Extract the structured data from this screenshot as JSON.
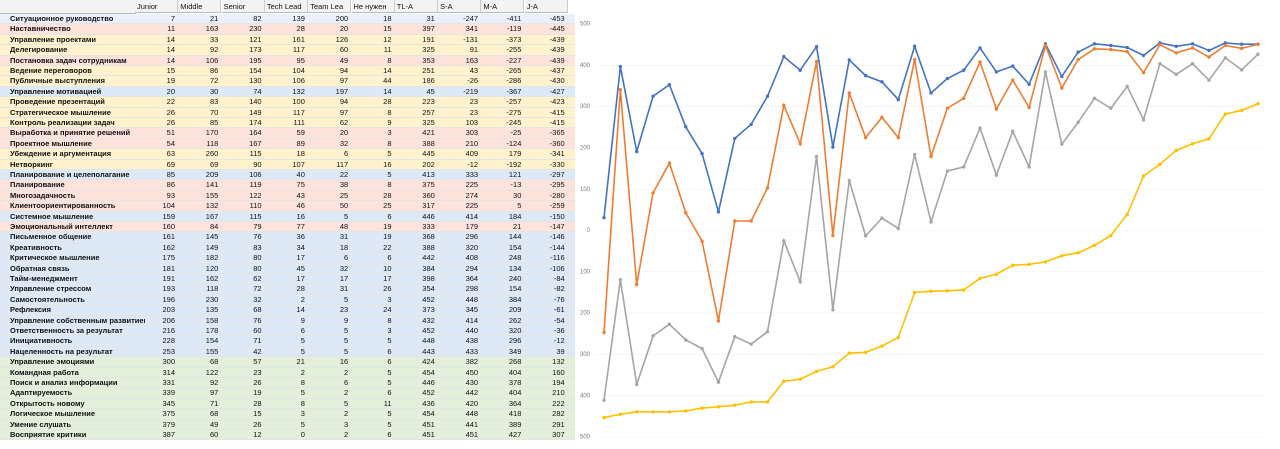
{
  "table": {
    "headers": [
      "Junior",
      "Middle",
      "Senior",
      "Tech Lead",
      "Team Lea",
      "Не нужен",
      "TL-A",
      "S-A",
      "M-A",
      "J-A"
    ],
    "rows": [
      [
        "Ситуационное руководство",
        7,
        21,
        82,
        139,
        200,
        18,
        31,
        -247,
        -411,
        -453
      ],
      [
        "Наставничество",
        11,
        163,
        230,
        28,
        20,
        15,
        397,
        341,
        -119,
        -445
      ],
      [
        "Управление проектами",
        14,
        33,
        121,
        161,
        126,
        12,
        191,
        -131,
        -373,
        -439
      ],
      [
        "Делегирование",
        14,
        92,
        173,
        117,
        60,
        11,
        325,
        91,
        -255,
        -439
      ],
      [
        "Постановка задач сотрудникам",
        14,
        106,
        195,
        95,
        49,
        8,
        353,
        163,
        -227,
        -439
      ],
      [
        "Ведение переговоров",
        15,
        86,
        154,
        104,
        94,
        14,
        251,
        43,
        -265,
        -437
      ],
      [
        "Публичные выступления",
        19,
        72,
        130,
        106,
        97,
        44,
        186,
        -26,
        -286,
        -430
      ],
      [
        "Управление мотивацией",
        20,
        30,
        74,
        132,
        197,
        14,
        45,
        -219,
        -367,
        -427
      ],
      [
        "Проведение презентаций",
        22,
        83,
        140,
        100,
        94,
        28,
        223,
        23,
        -257,
        -423
      ],
      [
        "Стратегическое мышление",
        26,
        70,
        149,
        117,
        97,
        8,
        257,
        23,
        -275,
        -415
      ],
      [
        "Контроль реализации задач",
        26,
        85,
        174,
        111,
        62,
        9,
        325,
        103,
        -245,
        -415
      ],
      [
        "Выработка и принятие решений",
        51,
        170,
        164,
        59,
        20,
        3,
        421,
        303,
        -25,
        -365
      ],
      [
        "Проектное мышление",
        54,
        118,
        167,
        89,
        32,
        8,
        388,
        210,
        -124,
        -360
      ],
      [
        "Убеждение и аргументация",
        63,
        260,
        115,
        18,
        6,
        5,
        445,
        409,
        179,
        -341
      ],
      [
        "Нетворкинг",
        69,
        69,
        90,
        107,
        117,
        16,
        202,
        -12,
        -192,
        -330
      ],
      [
        "Планирование и целеполагание",
        85,
        209,
        106,
        40,
        22,
        5,
        413,
        333,
        121,
        -297
      ],
      [
        "Планирование",
        86,
        141,
        119,
        75,
        38,
        8,
        375,
        225,
        -13,
        -295
      ],
      [
        "Многозадачность",
        93,
        155,
        122,
        43,
        25,
        28,
        360,
        274,
        30,
        -280
      ],
      [
        "Клиентоориентированность",
        104,
        132,
        110,
        46,
        50,
        25,
        317,
        225,
        5,
        -259
      ],
      [
        "Системное мышление",
        159,
        167,
        115,
        16,
        5,
        6,
        446,
        414,
        184,
        -150
      ],
      [
        "Эмоциональный интеллект",
        160,
        84,
        79,
        77,
        48,
        19,
        333,
        179,
        21,
        -147
      ],
      [
        "Письменное общение",
        161,
        145,
        76,
        36,
        31,
        19,
        368,
        296,
        144,
        -146
      ],
      [
        "Креативность",
        162,
        149,
        83,
        34,
        18,
        22,
        388,
        320,
        154,
        -144
      ],
      [
        "Критическое мышление",
        175,
        182,
        80,
        17,
        6,
        6,
        442,
        408,
        248,
        -116
      ],
      [
        "Обратная связь",
        181,
        120,
        80,
        45,
        32,
        10,
        384,
        294,
        134,
        -106
      ],
      [
        "Тайм-менеджмент",
        191,
        162,
        62,
        17,
        17,
        17,
        398,
        364,
        240,
        -84
      ],
      [
        "Управление стрессом",
        193,
        118,
        72,
        28,
        31,
        26,
        354,
        298,
        154,
        -82
      ],
      [
        "Самостоятельность",
        196,
        230,
        32,
        2,
        5,
        3,
        452,
        448,
        384,
        -76
      ],
      [
        "Рефлексия",
        203,
        135,
        68,
        14,
        23,
        24,
        373,
        345,
        209,
        -61
      ],
      [
        "Управление собственным развитием",
        206,
        158,
        76,
        9,
        9,
        8,
        432,
        414,
        262,
        -54
      ],
      [
        "Ответственность за результат",
        216,
        178,
        60,
        6,
        5,
        3,
        452,
        440,
        320,
        -36
      ],
      [
        "Инициативность",
        228,
        154,
        71,
        5,
        5,
        5,
        448,
        438,
        296,
        -12
      ],
      [
        "Нацеленность на результат",
        253,
        155,
        42,
        5,
        5,
        6,
        443,
        433,
        349,
        39
      ],
      [
        "Управление эмоциями",
        300,
        68,
        57,
        21,
        16,
        6,
        424,
        382,
        268,
        132
      ],
      [
        "Командная работа",
        314,
        122,
        23,
        2,
        2,
        5,
        454,
        450,
        404,
        160
      ],
      [
        "Поиск и анализ информации",
        331,
        92,
        26,
        8,
        6,
        5,
        446,
        430,
        378,
        194
      ],
      [
        "Адаптируемость",
        339,
        97,
        19,
        5,
        2,
        6,
        452,
        442,
        404,
        210
      ],
      [
        "Открытость новому",
        345,
        71,
        28,
        8,
        5,
        11,
        436,
        420,
        364,
        222
      ],
      [
        "Логическое мышление",
        375,
        68,
        15,
        3,
        2,
        5,
        454,
        448,
        418,
        282
      ],
      [
        "Умение слушать",
        379,
        49,
        26,
        5,
        3,
        5,
        451,
        441,
        389,
        291
      ],
      [
        "Восприятие критики",
        387,
        60,
        12,
        0,
        2,
        6,
        451,
        451,
        427,
        307
      ]
    ],
    "row_colors": [
      "#eaf1fb",
      "#fde3dc",
      "#fff2cc",
      "#fff2cc",
      "#fde3dc",
      "#fff2cc",
      "#fff2cc",
      "#dde9f7",
      "#fff2cc",
      "#fff2cc",
      "#fff2cc",
      "#fde3dc",
      "#fde3dc",
      "#fff2cc",
      "#fff2cc",
      "#dde9f7",
      "#fde3dc",
      "#fde3dc",
      "#fde3dc",
      "#dde9f7",
      "#fde3dc",
      "#dde9f7",
      "#dde9f7",
      "#dde9f7",
      "#dde9f7",
      "#dde9f7",
      "#dde9f7",
      "#dde9f7",
      "#dde9f7",
      "#dde9f7",
      "#dde9f7",
      "#dde9f7",
      "#dde9f7",
      "#e2efda",
      "#e2efda",
      "#e2efda",
      "#e2efda",
      "#e2efda",
      "#e2efda",
      "#e2efda",
      "#e2efda"
    ]
  },
  "chart_data": {
    "type": "line",
    "ylim": [
      -500,
      500
    ],
    "yticks": [
      -500,
      -400,
      -300,
      -200,
      -100,
      0,
      100,
      200,
      300,
      400,
      500
    ],
    "series": [
      {
        "color": "#4472c4",
        "values": [
          31,
          397,
          191,
          325,
          353,
          251,
          186,
          45,
          223,
          257,
          325,
          421,
          388,
          445,
          202,
          413,
          375,
          360,
          317,
          446,
          333,
          368,
          388,
          442,
          384,
          398,
          354,
          452,
          373,
          432,
          452,
          448,
          443,
          424,
          454,
          446,
          452,
          436,
          454,
          451,
          451
        ]
      },
      {
        "color": "#ed7d31",
        "values": [
          -247,
          341,
          -131,
          91,
          163,
          43,
          -26,
          -219,
          23,
          23,
          103,
          303,
          210,
          409,
          -12,
          333,
          225,
          274,
          225,
          414,
          179,
          296,
          320,
          408,
          294,
          364,
          298,
          448,
          345,
          414,
          440,
          438,
          433,
          382,
          450,
          430,
          442,
          420,
          448,
          441,
          451
        ]
      },
      {
        "color": "#a5a5a5",
        "values": [
          -411,
          -119,
          -373,
          -255,
          -227,
          -265,
          -286,
          -367,
          -257,
          -275,
          -245,
          -25,
          -124,
          179,
          -192,
          121,
          -13,
          30,
          5,
          184,
          21,
          144,
          154,
          248,
          134,
          240,
          154,
          384,
          209,
          262,
          320,
          296,
          349,
          268,
          404,
          378,
          404,
          364,
          418,
          389,
          427
        ]
      },
      {
        "color": "#ffc000",
        "values": [
          -453,
          -445,
          -439,
          -439,
          -439,
          -437,
          -430,
          -427,
          -423,
          -415,
          -415,
          -365,
          -360,
          -341,
          -330,
          -297,
          -295,
          -280,
          -259,
          -150,
          -147,
          -146,
          -144,
          -116,
          -106,
          -84,
          -82,
          -76,
          -61,
          -54,
          -36,
          -12,
          39,
          132,
          160,
          194,
          210,
          222,
          282,
          291,
          307
        ]
      }
    ]
  }
}
